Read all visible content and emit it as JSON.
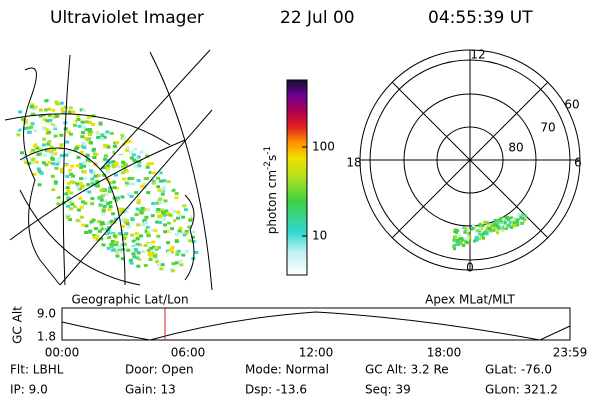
{
  "header": {
    "title": "Ultraviolet Imager",
    "date": "22 Jul 00",
    "time": "04:55:39 UT"
  },
  "colorbar": {
    "unit": "photon cm",
    "exp1": "-2",
    "unit2": "s",
    "exp2": "-1",
    "ticks": [
      "100",
      "10"
    ]
  },
  "polar": {
    "mlt_labels": [
      "12",
      "18",
      "6",
      "0"
    ],
    "lat_labels": [
      "60",
      "70",
      "80"
    ]
  },
  "panels": {
    "left": "Geographic Lat/Lon",
    "right": "Apex MLat/MLT"
  },
  "altitude": {
    "axis_label": "GC Alt",
    "y_labels": [
      "9.0",
      "1.8"
    ],
    "x_labels": [
      "00:00",
      "06:00",
      "12:00",
      "18:00",
      "23:59"
    ]
  },
  "footer": {
    "rows": [
      [
        "Flt: LBHL",
        "Door: Open",
        "Mode: Normal",
        "GC Alt: 3.2 Re",
        "GLat: -76.0"
      ],
      [
        "IP: 9.0",
        "Gain: 13",
        "Dsp: -13.6",
        "Seq: 39",
        "GLon: 321.2"
      ]
    ]
  }
}
